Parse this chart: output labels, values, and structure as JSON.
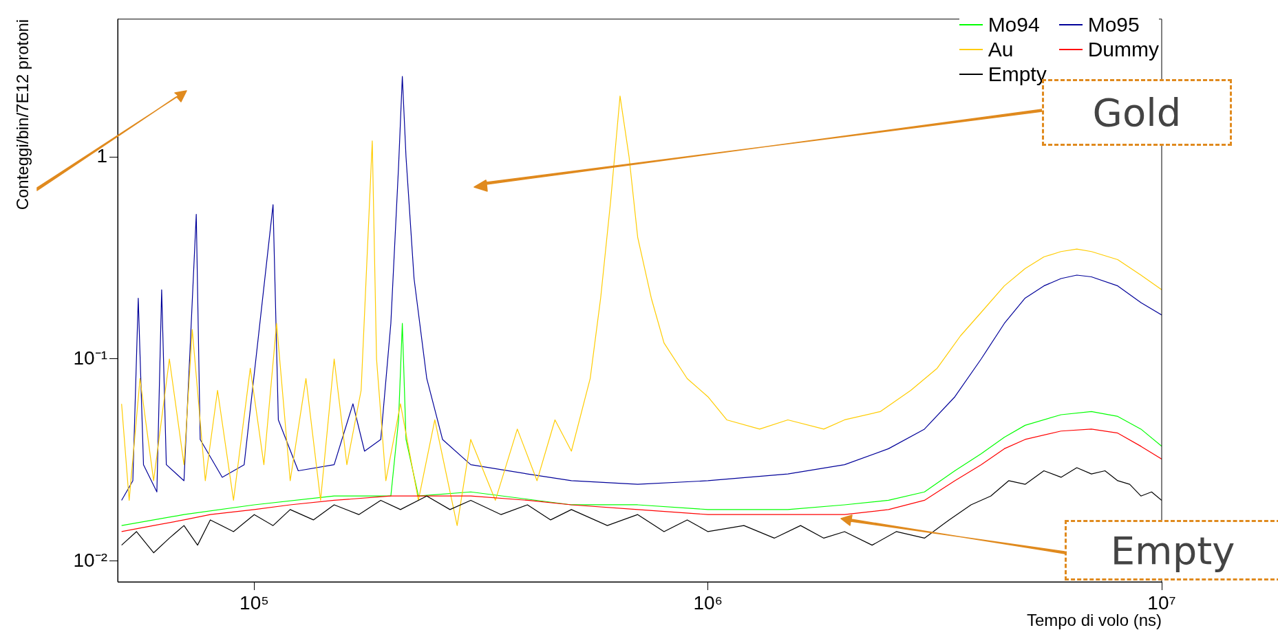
{
  "chart_data": {
    "type": "line",
    "xlabel": "Tempo di volo (ns)",
    "ylabel": "Conteggi/bin/7E12 protoni",
    "log": "xy",
    "grid": false,
    "legend": "top right",
    "xlim": [
      50000,
      10000000
    ],
    "xticks": [
      {
        "value": 100000,
        "label": "10⁵"
      },
      {
        "value": 1000000,
        "label": "10⁶"
      },
      {
        "value": 10000000,
        "label": "10⁷"
      }
    ],
    "ylim": [
      0.0079,
      4.8
    ],
    "yticks": [
      {
        "value": 0.01,
        "label": "10⁻²"
      },
      {
        "value": 0.1,
        "label": "10⁻¹"
      },
      1
    ],
    "annotations": [
      "Gold",
      "Empty"
    ],
    "series": [
      {
        "name": "Mo94",
        "color": "#00ff00",
        "x": [
          51000,
          70000,
          100000,
          150000,
          200000,
          208000,
          212000,
          216000,
          230000,
          300000,
          500000,
          700000,
          1000000,
          1500000,
          2000000,
          2500000,
          3000000,
          3500000,
          4000000,
          4500000,
          5000000,
          6000000,
          7000000,
          8000000,
          9000000,
          10000000
        ],
        "values": [
          0.015,
          0.017,
          0.019,
          0.021,
          0.021,
          0.05,
          0.15,
          0.04,
          0.021,
          0.022,
          0.019,
          0.019,
          0.018,
          0.018,
          0.019,
          0.02,
          0.022,
          0.028,
          0.034,
          0.041,
          0.047,
          0.053,
          0.055,
          0.052,
          0.045,
          0.037
        ]
      },
      {
        "name": "Mo95",
        "color": "#000099",
        "x": [
          51000,
          54000,
          55500,
          57000,
          61000,
          62500,
          64000,
          70000,
          74500,
          76000,
          85000,
          95000,
          110000,
          113000,
          125000,
          150000,
          165000,
          175000,
          190000,
          200000,
          208000,
          212000,
          216000,
          225000,
          240000,
          260000,
          300000,
          400000,
          500000,
          700000,
          1000000,
          1500000,
          2000000,
          2500000,
          3000000,
          3500000,
          4000000,
          4500000,
          5000000,
          5500000,
          6000000,
          6500000,
          7000000,
          8000000,
          9000000,
          10000000
        ],
        "values": [
          0.02,
          0.025,
          0.2,
          0.03,
          0.022,
          0.22,
          0.03,
          0.025,
          0.52,
          0.04,
          0.026,
          0.03,
          0.58,
          0.05,
          0.028,
          0.03,
          0.06,
          0.035,
          0.04,
          0.15,
          0.9,
          2.5,
          1.0,
          0.25,
          0.08,
          0.04,
          0.03,
          0.027,
          0.025,
          0.024,
          0.025,
          0.027,
          0.03,
          0.036,
          0.045,
          0.065,
          0.1,
          0.15,
          0.2,
          0.23,
          0.25,
          0.26,
          0.255,
          0.23,
          0.19,
          0.165
        ]
      },
      {
        "name": "Au",
        "color": "#ffcc00",
        "x": [
          51000,
          53000,
          56000,
          60000,
          65000,
          70000,
          73000,
          78000,
          83000,
          90000,
          98000,
          105000,
          112000,
          120000,
          130000,
          140000,
          150000,
          160000,
          172000,
          182000,
          186000,
          195000,
          210000,
          230000,
          250000,
          280000,
          300000,
          340000,
          380000,
          420000,
          460000,
          500000,
          550000,
          580000,
          610000,
          640000,
          670000,
          700000,
          750000,
          800000,
          900000,
          1000000,
          1100000,
          1300000,
          1500000,
          1800000,
          2000000,
          2400000,
          2800000,
          3200000,
          3600000,
          4000000,
          4500000,
          5000000,
          5500000,
          6000000,
          6500000,
          7000000,
          8000000,
          9000000,
          10000000
        ],
        "values": [
          0.06,
          0.02,
          0.08,
          0.025,
          0.1,
          0.03,
          0.14,
          0.025,
          0.07,
          0.02,
          0.09,
          0.03,
          0.15,
          0.025,
          0.08,
          0.02,
          0.1,
          0.03,
          0.07,
          1.2,
          0.1,
          0.025,
          0.06,
          0.02,
          0.05,
          0.015,
          0.04,
          0.02,
          0.045,
          0.025,
          0.05,
          0.035,
          0.08,
          0.2,
          0.6,
          2.0,
          1.0,
          0.4,
          0.2,
          0.12,
          0.08,
          0.065,
          0.05,
          0.045,
          0.05,
          0.045,
          0.05,
          0.055,
          0.07,
          0.09,
          0.13,
          0.17,
          0.23,
          0.28,
          0.32,
          0.34,
          0.35,
          0.34,
          0.31,
          0.26,
          0.22
        ]
      },
      {
        "name": "Dummy",
        "color": "#ff0000",
        "x": [
          51000,
          60000,
          70000,
          80000,
          100000,
          120000,
          150000,
          200000,
          250000,
          300000,
          400000,
          500000,
          700000,
          1000000,
          1500000,
          2000000,
          2500000,
          3000000,
          3500000,
          4000000,
          4500000,
          5000000,
          6000000,
          7000000,
          8000000,
          9000000,
          10000000
        ],
        "values": [
          0.014,
          0.015,
          0.016,
          0.017,
          0.018,
          0.019,
          0.02,
          0.021,
          0.021,
          0.021,
          0.02,
          0.019,
          0.018,
          0.017,
          0.017,
          0.017,
          0.018,
          0.02,
          0.025,
          0.03,
          0.036,
          0.04,
          0.044,
          0.045,
          0.043,
          0.037,
          0.032
        ]
      },
      {
        "name": "Empty",
        "color": "#000000",
        "x": [
          51000,
          55000,
          60000,
          65000,
          70000,
          75000,
          80000,
          90000,
          100000,
          110000,
          120000,
          135000,
          150000,
          170000,
          190000,
          210000,
          240000,
          270000,
          300000,
          350000,
          400000,
          450000,
          500000,
          600000,
          700000,
          800000,
          900000,
          1000000,
          1200000,
          1400000,
          1600000,
          1800000,
          2000000,
          2300000,
          2600000,
          3000000,
          3400000,
          3800000,
          4200000,
          4600000,
          5000000,
          5500000,
          6000000,
          6500000,
          7000000,
          7500000,
          8000000,
          8500000,
          9000000,
          9500000,
          10000000
        ],
        "values": [
          0.012,
          0.014,
          0.011,
          0.013,
          0.015,
          0.012,
          0.016,
          0.014,
          0.017,
          0.015,
          0.018,
          0.016,
          0.019,
          0.017,
          0.02,
          0.018,
          0.021,
          0.018,
          0.02,
          0.017,
          0.019,
          0.016,
          0.018,
          0.015,
          0.017,
          0.014,
          0.016,
          0.014,
          0.015,
          0.013,
          0.015,
          0.013,
          0.014,
          0.012,
          0.014,
          0.013,
          0.016,
          0.019,
          0.021,
          0.025,
          0.024,
          0.028,
          0.026,
          0.029,
          0.027,
          0.028,
          0.025,
          0.024,
          0.021,
          0.022,
          0.02
        ]
      }
    ]
  }
}
